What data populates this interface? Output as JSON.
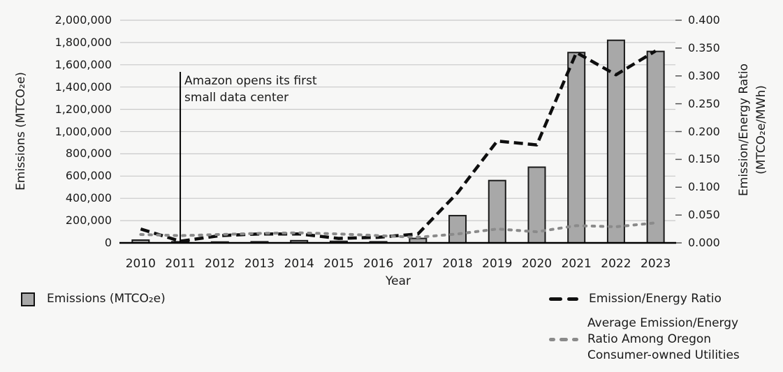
{
  "colors": {
    "background": "#f7f7f6",
    "bar_fill": "#a8a8a8",
    "bar_border": "#1a1a1a",
    "line_emission_ratio": "#0e0e0e",
    "line_average_ratio": "#8a8a8a",
    "gridline": "#c9c9c9",
    "axis": "#000000",
    "text": "#1a1a1a"
  },
  "axes": {
    "left": {
      "title": "Emissions (MTCO₂e)",
      "ticks": [
        "0",
        "200,000",
        "400,000",
        "600,000",
        "800,000",
        "1,000,000",
        "1,200,000",
        "1,400,000",
        "1,600,000",
        "1,800,000",
        "2,000,000"
      ]
    },
    "right": {
      "title_line1": "Emission/Energy Ratio",
      "title_line2": "(MTCO₂e/MWh)",
      "ticks": [
        "0.000",
        "0.050",
        "0.100",
        "0.150",
        "0.200",
        "0.250",
        "0.300",
        "0.350",
        "0.400"
      ]
    },
    "x": {
      "title": "Year",
      "ticks": [
        "2010",
        "2011",
        "2012",
        "2013",
        "2014",
        "2015",
        "2016",
        "2017",
        "2018",
        "2019",
        "2020",
        "2021",
        "2022",
        "2023"
      ]
    }
  },
  "annotation": {
    "line1": "Amazon opens its first",
    "line2": "small data center",
    "x_category": "2011"
  },
  "legend": {
    "items": [
      {
        "label": "Emissions (MTCO₂e)",
        "swatch": "bar"
      },
      {
        "label": "Emission/Energy Ratio",
        "swatch": "dashed-line-black"
      },
      {
        "label": "Average Emission/Energy Ratio Among Oregon Consumer-owned Utilities",
        "swatch": "dashed-line-gray"
      }
    ]
  },
  "chart_data": {
    "type": "bar",
    "subtype": "combo-bar-line-dual-axis",
    "categories": [
      "2010",
      "2011",
      "2012",
      "2013",
      "2014",
      "2015",
      "2016",
      "2017",
      "2018",
      "2019",
      "2020",
      "2021",
      "2022",
      "2023"
    ],
    "series": [
      {
        "name": "Emissions (MTCO₂e)",
        "type": "bar",
        "axis": "left",
        "values": [
          25000,
          10000,
          8000,
          10000,
          20000,
          14000,
          10000,
          40000,
          245000,
          560000,
          680000,
          1710000,
          1820000,
          1720000
        ]
      },
      {
        "name": "Emission/Energy Ratio",
        "type": "line",
        "axis": "right",
        "values": [
          0.025,
          0.003,
          0.013,
          0.016,
          0.016,
          0.008,
          0.01,
          0.016,
          0.09,
          0.183,
          0.176,
          0.342,
          0.302,
          0.345
        ]
      },
      {
        "name": "Average Emission/Energy Ratio Among Oregon Consumer-owned Utilities",
        "type": "line",
        "axis": "right",
        "values": [
          0.015,
          0.013,
          0.015,
          0.017,
          0.018,
          0.016,
          0.013,
          0.01,
          0.016,
          0.025,
          0.02,
          0.031,
          0.029,
          0.036
        ]
      }
    ],
    "xlabel": "Year",
    "ylabel_left": "Emissions (MTCO₂e)",
    "ylabel_right": "Emission/Energy Ratio (MTCO₂e/MWh)",
    "ylim_left": [
      0,
      2000000
    ],
    "ytick_step_left": 200000,
    "ylim_right": [
      0,
      0.4
    ],
    "ytick_step_right": 0.05,
    "grid": true,
    "legend_position": "bottom",
    "annotation_text": "Amazon opens its first small data center",
    "annotation_x": "2011"
  }
}
